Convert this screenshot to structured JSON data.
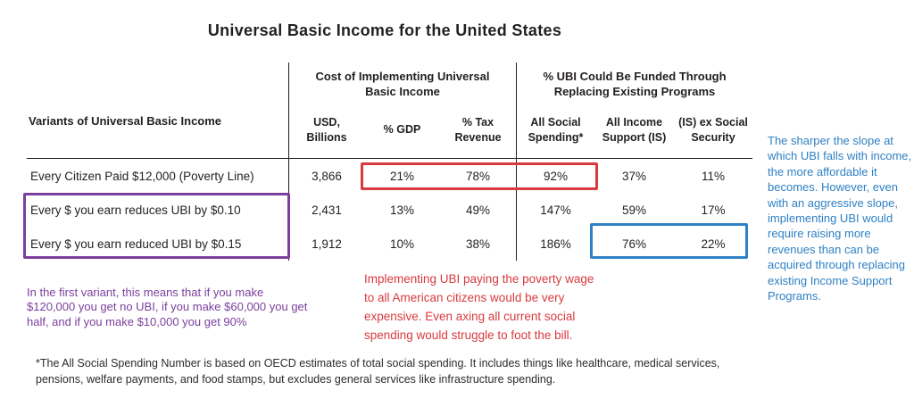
{
  "title": "Universal Basic Income for the United States",
  "chart_data": {
    "type": "table",
    "title": "Universal Basic Income for the United States",
    "column_groups": [
      "Cost of Implementing Universal Basic Income",
      "% UBI Could Be Funded Through Replacing Existing Programs"
    ],
    "columns": [
      "Variants of Universal Basic Income",
      "USD, Billions",
      "% GDP",
      "% Tax Revenue",
      "All Social Spending*",
      "All Income Support (IS)",
      "(IS) ex Social Security"
    ],
    "rows": [
      [
        "Every Citizen Paid $12,000 (Poverty Line)",
        "3,866",
        "21%",
        "78%",
        "92%",
        "37%",
        "11%"
      ],
      [
        "Every $ you earn reduces UBI by $0.10",
        "2,431",
        "13%",
        "49%",
        "147%",
        "59%",
        "17%"
      ],
      [
        "Every $ you earn reduced UBI by $0.15",
        "1,912",
        "10%",
        "38%",
        "186%",
        "76%",
        "22%"
      ]
    ],
    "highlights": [
      {
        "color": "#d93a3e",
        "cells": "row 1: % GDP, % Tax Revenue, All Social Spending"
      },
      {
        "color": "#7b3f9d",
        "cells": "rows 2-3: variant labels"
      },
      {
        "color": "#2f80c4",
        "cells": "row 3: All Income Support (IS), (IS) ex Social Security"
      }
    ]
  },
  "annotations": {
    "purple_note": "In the first variant, this means that if you make $120,000 you get no UBI, if you make $60,000 you get half, and if you make $10,000 you get 90%",
    "red_note": "Implementing UBI paying the poverty wage to all American citizens would be very expensive. Even axing all current social spending would struggle to foot the bill.",
    "blue_note": "The sharper the slope at which UBI falls with income, the more affordable it becomes. However, even with an aggressive slope, implementing UBI would require raising more revenues than can be acquired through replacing existing Income Support Programs."
  },
  "footnote": "*The All Social Spending Number is based on OECD estimates of total social spending. It includes things like healthcare, medical services, pensions, welfare payments, and food stamps, but excludes general services like infrastructure spending.",
  "colors": {
    "red": "#d93a3e",
    "purple": "#7b3f9d",
    "blue": "#2f80c4",
    "text": "#231f20"
  }
}
